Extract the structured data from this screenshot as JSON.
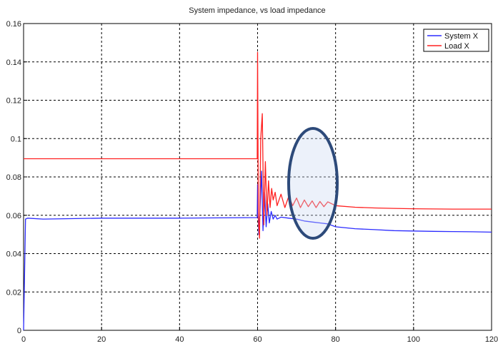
{
  "chart_data": {
    "type": "line",
    "title": "System impedance, vs load impedance",
    "xlabel": "",
    "ylabel": "",
    "xlim": [
      0,
      120
    ],
    "ylim": [
      0,
      0.16
    ],
    "x_ticks": [
      "0",
      "20",
      "40",
      "60",
      "80",
      "100",
      "120"
    ],
    "y_ticks": [
      "0",
      "0.02",
      "0.04",
      "0.06",
      "0.08",
      "0.1",
      "0.12",
      "0.14",
      "0.16"
    ],
    "grid": true,
    "legend_position": "top-right",
    "series": [
      {
        "name": "System X",
        "color": "#2b2bff",
        "x": [
          0,
          0.5,
          1,
          5,
          20,
          40,
          59.9,
          60,
          60.3,
          60.6,
          61,
          61.4,
          61.8,
          62.2,
          62.6,
          63,
          63.5,
          64,
          64.5,
          65,
          66,
          68,
          70,
          72,
          74,
          76,
          78,
          80,
          85,
          90,
          95,
          100,
          105,
          110,
          115,
          120
        ],
        "y": [
          0,
          0.058,
          0.0585,
          0.058,
          0.0585,
          0.0585,
          0.0588,
          0.076,
          0.05,
          0.062,
          0.083,
          0.052,
          0.072,
          0.054,
          0.066,
          0.056,
          0.062,
          0.058,
          0.06,
          0.058,
          0.059,
          0.0585,
          0.058,
          0.057,
          0.0565,
          0.056,
          0.0555,
          0.054,
          0.053,
          0.0525,
          0.052,
          0.0518,
          0.0516,
          0.0515,
          0.0514,
          0.0512
        ]
      },
      {
        "name": "Load X",
        "color": "#ff2020",
        "x": [
          0,
          20,
          40,
          59.9,
          60,
          60.2,
          60.5,
          60.8,
          61.2,
          61.6,
          62,
          62.4,
          62.8,
          63.2,
          63.6,
          64,
          64.5,
          65,
          66,
          67,
          68,
          69,
          70,
          71,
          72,
          73,
          74,
          75,
          76,
          77,
          78,
          80,
          85,
          90,
          95,
          100,
          105,
          110,
          115,
          120
        ],
        "y": [
          0.0895,
          0.0895,
          0.0895,
          0.0895,
          0.145,
          0.058,
          0.048,
          0.1,
          0.113,
          0.055,
          0.088,
          0.06,
          0.078,
          0.064,
          0.074,
          0.068,
          0.072,
          0.065,
          0.071,
          0.064,
          0.07,
          0.065,
          0.069,
          0.064,
          0.068,
          0.0645,
          0.0675,
          0.064,
          0.0672,
          0.0645,
          0.067,
          0.065,
          0.0642,
          0.0638,
          0.0636,
          0.0634,
          0.0633,
          0.0632,
          0.0632,
          0.0632
        ]
      }
    ]
  }
}
